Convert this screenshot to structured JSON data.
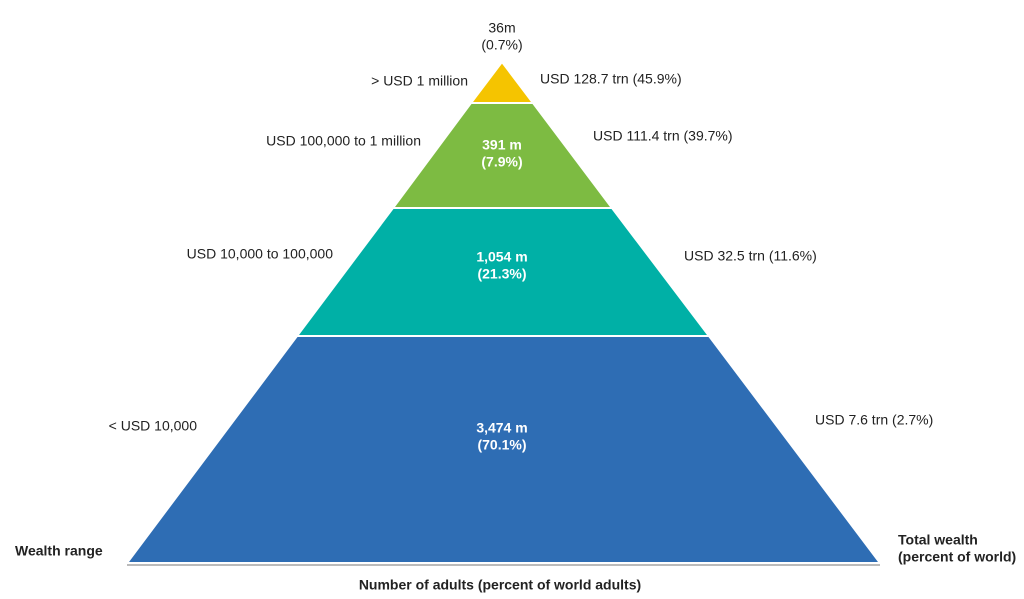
{
  "levels": [
    {
      "wealth_range": ">  USD 1 million",
      "adults": "36m",
      "adults_share": "(0.7%)",
      "total_wealth": "USD 128.7 trn (45.9%)"
    },
    {
      "wealth_range": "USD 100,000  to 1 million",
      "adults": "391 m",
      "adults_share": "(7.9%)",
      "total_wealth": "USD 111.4 trn (39.7%)"
    },
    {
      "wealth_range": "USD 10,000  to 100,000",
      "adults": "1,054 m",
      "adults_share": "(21.3%)",
      "total_wealth": "USD 32.5 trn (11.6%)"
    },
    {
      "wealth_range": "<  USD 10,000",
      "adults": "3,474 m",
      "adults_share": "(70.1%)",
      "total_wealth": "USD 7.6 trn (2.7%)"
    }
  ],
  "labels": {
    "left": "Wealth range",
    "right_line1": "Total wealth",
    "right_line2": "(percent of world)",
    "bottom": "Number of adults (percent of world adults)"
  }
}
